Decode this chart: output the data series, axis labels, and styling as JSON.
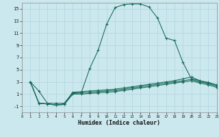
{
  "xlabel": "Humidex (Indice chaleur)",
  "background_color": "#cce8ef",
  "grid_color": "#b8d8e0",
  "line_color": "#1a6b5a",
  "xlim": [
    0,
    23
  ],
  "ylim": [
    -2,
    16
  ],
  "xticks": [
    0,
    1,
    2,
    3,
    4,
    5,
    6,
    7,
    8,
    9,
    10,
    11,
    12,
    13,
    14,
    15,
    16,
    17,
    18,
    19,
    20,
    21,
    22,
    23
  ],
  "yticks": [
    -1,
    1,
    3,
    5,
    7,
    9,
    11,
    13,
    15
  ],
  "curve1_x": [
    1,
    2,
    3,
    4,
    5,
    6,
    7,
    8,
    9,
    10,
    11,
    12,
    13,
    14,
    15,
    16,
    17,
    18,
    19,
    20,
    21,
    22,
    23
  ],
  "curve1_y": [
    3,
    1.5,
    -0.5,
    -0.5,
    -0.5,
    1.2,
    1.2,
    5.2,
    8.2,
    12.5,
    15.2,
    15.7,
    15.8,
    15.8,
    15.3,
    13.5,
    10.2,
    9.8,
    6.2,
    3.5,
    3.2,
    2.8,
    2.5
  ],
  "curve2_x": [
    1,
    2,
    3,
    4,
    5,
    6,
    7,
    8,
    9,
    10,
    11,
    12,
    13,
    14,
    15,
    16,
    17,
    18,
    19,
    20,
    21,
    22,
    23
  ],
  "curve2_y": [
    3.0,
    -0.5,
    -0.6,
    -0.8,
    -0.6,
    1.3,
    1.4,
    1.5,
    1.6,
    1.7,
    1.8,
    2.0,
    2.2,
    2.4,
    2.6,
    2.8,
    3.0,
    3.2,
    3.5,
    3.8,
    3.2,
    2.9,
    2.5
  ],
  "curve3_x": [
    1,
    2,
    3,
    4,
    5,
    6,
    7,
    8,
    9,
    10,
    11,
    12,
    13,
    14,
    15,
    16,
    17,
    18,
    19,
    20,
    21,
    22,
    23
  ],
  "curve3_y": [
    3.0,
    -0.5,
    -0.6,
    -0.8,
    -0.7,
    1.1,
    1.2,
    1.3,
    1.4,
    1.5,
    1.6,
    1.8,
    2.0,
    2.2,
    2.4,
    2.6,
    2.8,
    3.0,
    3.2,
    3.4,
    3.0,
    2.7,
    2.3
  ],
  "curve4_x": [
    1,
    2,
    3,
    4,
    5,
    6,
    7,
    8,
    9,
    10,
    11,
    12,
    13,
    14,
    15,
    16,
    17,
    18,
    19,
    20,
    21,
    22,
    23
  ],
  "curve4_y": [
    3.0,
    -0.5,
    -0.6,
    -0.8,
    -0.7,
    1.0,
    1.0,
    1.1,
    1.2,
    1.3,
    1.4,
    1.6,
    1.8,
    2.0,
    2.2,
    2.4,
    2.6,
    2.8,
    3.0,
    3.2,
    2.8,
    2.5,
    2.1
  ]
}
